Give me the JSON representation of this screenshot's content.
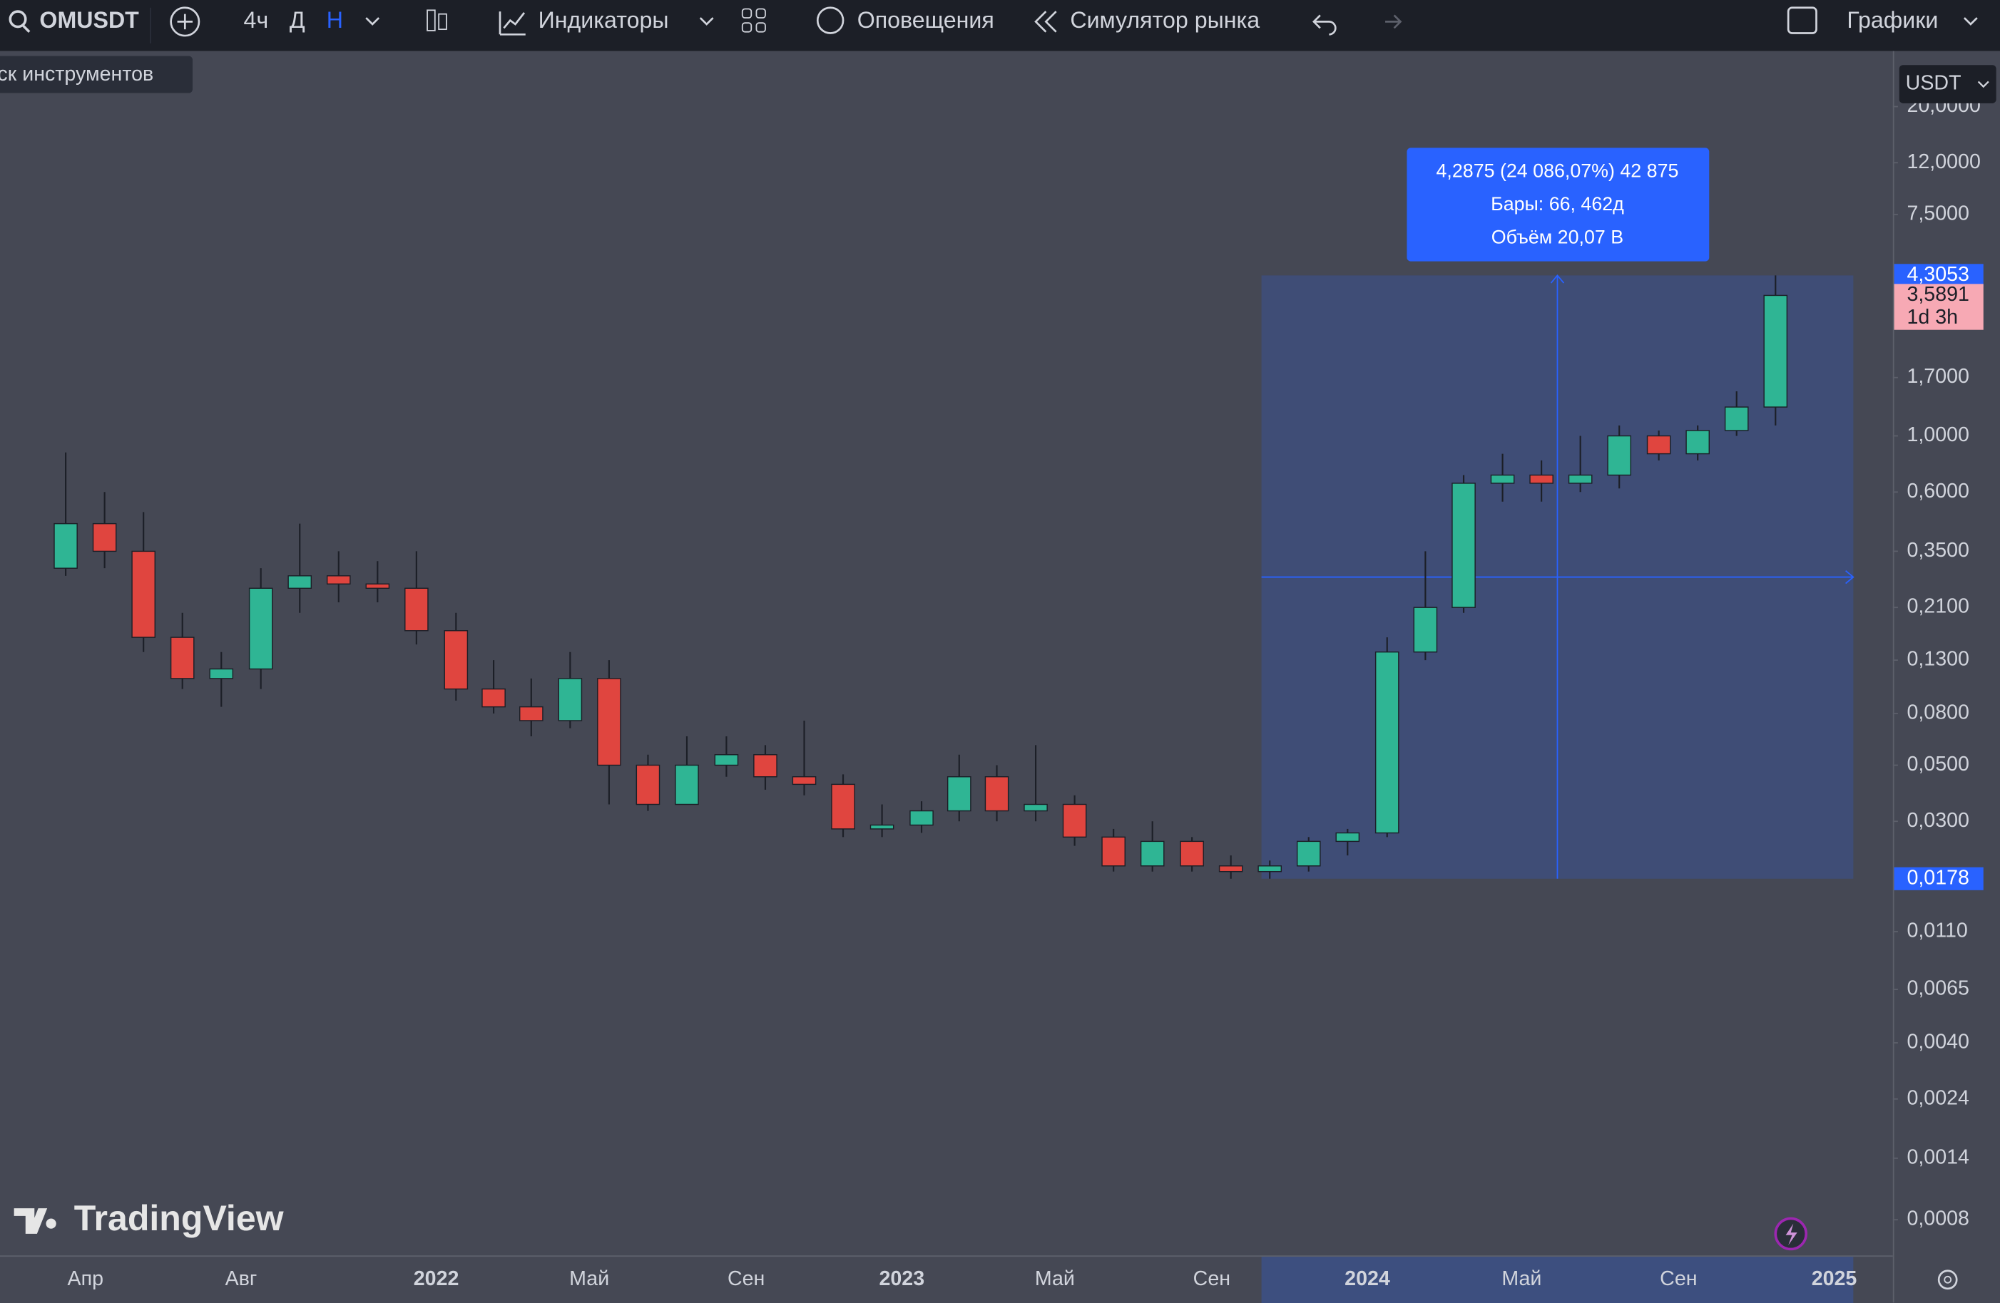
{
  "toolbar": {
    "symbol": "OMUSDT",
    "intervals": [
      "4ч",
      "Д",
      "Н"
    ],
    "indicators": "Индикаторы",
    "alerts": "Оповещения",
    "replay": "Симулятор рынка",
    "layout": "Графики"
  },
  "tooltip": "ск инструментов",
  "currency": "USDT",
  "watermark": "TradingView",
  "chart_data": {
    "type": "candlestick",
    "log_scale": true,
    "up_color": "#2fb594",
    "down_color": "#e0453f",
    "x": [
      "2021-03",
      "2021-04",
      "2021-05",
      "2021-06",
      "2021-07",
      "2021-08",
      "2021-09",
      "2021-10",
      "2021-11",
      "2021-12",
      "2022-01",
      "2022-02",
      "2022-03",
      "2022-04",
      "2022-05",
      "2022-06",
      "2022-07",
      "2022-08",
      "2022-09",
      "2022-10",
      "2022-11",
      "2022-12",
      "2023-01",
      "2023-02",
      "2023-03",
      "2023-04",
      "2023-05",
      "2023-06",
      "2023-07",
      "2023-08",
      "2023-09",
      "2023-10",
      "2023-11",
      "2023-12",
      "2024-01",
      "2024-02",
      "2024-03",
      "2024-04",
      "2024-05",
      "2024-06",
      "2024-07",
      "2024-08",
      "2024-09",
      "2024-10",
      "2024-11"
    ],
    "open": [
      0.3,
      0.45,
      0.35,
      0.16,
      0.11,
      0.12,
      0.25,
      0.28,
      0.26,
      0.25,
      0.17,
      0.1,
      0.085,
      0.075,
      0.11,
      0.05,
      0.035,
      0.05,
      0.055,
      0.045,
      0.042,
      0.028,
      0.029,
      0.033,
      0.045,
      0.033,
      0.035,
      0.026,
      0.02,
      0.025,
      0.02,
      0.019,
      0.02,
      0.025,
      0.027,
      0.14,
      0.21,
      0.65,
      0.7,
      0.65,
      0.7,
      1.0,
      0.85,
      1.05,
      1.3
    ],
    "high": [
      0.86,
      0.6,
      0.5,
      0.2,
      0.14,
      0.3,
      0.45,
      0.35,
      0.32,
      0.35,
      0.2,
      0.13,
      0.11,
      0.14,
      0.13,
      0.055,
      0.065,
      0.065,
      0.06,
      0.075,
      0.046,
      0.035,
      0.036,
      0.055,
      0.05,
      0.06,
      0.038,
      0.028,
      0.03,
      0.026,
      0.022,
      0.021,
      0.026,
      0.028,
      0.16,
      0.35,
      0.7,
      0.85,
      0.8,
      1.0,
      1.1,
      1.05,
      1.1,
      1.5,
      4.3053
    ],
    "low": [
      0.28,
      0.3,
      0.14,
      0.1,
      0.085,
      0.1,
      0.2,
      0.22,
      0.22,
      0.15,
      0.09,
      0.08,
      0.065,
      0.07,
      0.035,
      0.033,
      0.035,
      0.045,
      0.04,
      0.038,
      0.026,
      0.026,
      0.027,
      0.03,
      0.03,
      0.03,
      0.024,
      0.019,
      0.019,
      0.019,
      0.0178,
      0.0178,
      0.019,
      0.022,
      0.026,
      0.13,
      0.2,
      0.55,
      0.55,
      0.6,
      0.62,
      0.8,
      0.8,
      1.0,
      1.1
    ],
    "close": [
      0.45,
      0.35,
      0.16,
      0.11,
      0.12,
      0.25,
      0.28,
      0.26,
      0.25,
      0.17,
      0.1,
      0.085,
      0.075,
      0.11,
      0.05,
      0.035,
      0.05,
      0.055,
      0.045,
      0.042,
      0.028,
      0.029,
      0.033,
      0.045,
      0.033,
      0.035,
      0.026,
      0.02,
      0.025,
      0.02,
      0.019,
      0.02,
      0.025,
      0.027,
      0.14,
      0.21,
      0.65,
      0.7,
      0.65,
      0.7,
      1.0,
      0.85,
      1.05,
      1.3,
      3.5891
    ],
    "ylim": [
      0.000578,
      31.3
    ],
    "yticks": [
      {
        "value": 20,
        "label": "20,0000"
      },
      {
        "value": 12,
        "label": "12,0000"
      },
      {
        "value": 7.5,
        "label": "7,5000"
      },
      {
        "value": 1.7,
        "label": "1,7000"
      },
      {
        "value": 1,
        "label": "1,0000"
      },
      {
        "value": 0.6,
        "label": "0,6000"
      },
      {
        "value": 0.35,
        "label": "0,3500"
      },
      {
        "value": 0.21,
        "label": "0,2100"
      },
      {
        "value": 0.13,
        "label": "0,1300"
      },
      {
        "value": 0.08,
        "label": "0,0800"
      },
      {
        "value": 0.05,
        "label": "0,0500"
      },
      {
        "value": 0.03,
        "label": "0,0300"
      },
      {
        "value": 0.011,
        "label": "0,0110"
      },
      {
        "value": 0.0065,
        "label": "0,0065"
      },
      {
        "value": 0.004,
        "label": "0,0040"
      },
      {
        "value": 0.0024,
        "label": "0,0024"
      },
      {
        "value": 0.0014,
        "label": "0,0014"
      },
      {
        "value": 0.0008,
        "label": "0,0008"
      }
    ],
    "xlim": [
      "2021-01-24",
      "2025-02-16"
    ],
    "xticks": [
      {
        "value": "2021-04-01",
        "label": "Апр"
      },
      {
        "value": "2021-08-01",
        "label": "Авг"
      },
      {
        "value": "2022-01-01",
        "label": "2022"
      },
      {
        "value": "2022-05-01",
        "label": "Май"
      },
      {
        "value": "2022-09-01",
        "label": "Сен"
      },
      {
        "value": "2023-01-01",
        "label": "2023"
      },
      {
        "value": "2023-05-01",
        "label": "Май"
      },
      {
        "value": "2023-09-01",
        "label": "Сен"
      },
      {
        "value": "2024-01-01",
        "label": "2024"
      },
      {
        "value": "2024-05-01",
        "label": "Май"
      },
      {
        "value": "2024-09-01",
        "label": "Сен"
      },
      {
        "value": "2025-01-01",
        "label": "2025"
      }
    ],
    "price_labels": [
      {
        "value": 4.3053,
        "label": "4,3053",
        "color": "#2962ff"
      },
      {
        "value": 3.5891,
        "label": "3,5891",
        "color": "#f7a9b4"
      },
      {
        "value": 0.0178,
        "label": "0,0178",
        "color": "#2962ff"
      }
    ],
    "countdown": "1d 3h",
    "measurement": {
      "from_x": "2023-10-10",
      "to_x": "2025-01-16",
      "from_price": 0.0178,
      "to_price": 4.3053,
      "color": "#2962ff",
      "lines": [
        "4,2875 (24 086,07%) 42 875",
        "Бары: 66, 462д",
        "Объём 20,07 B"
      ]
    }
  }
}
